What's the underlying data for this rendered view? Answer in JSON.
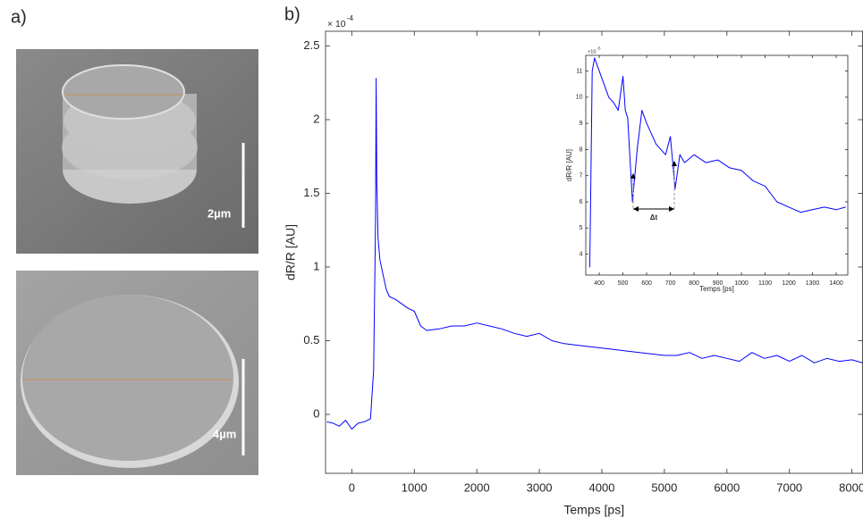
{
  "panels": {
    "a_label": "a)",
    "b_label": "b)"
  },
  "sem_images": [
    {
      "scale_label": "2µm"
    },
    {
      "scale_label": "4µm"
    }
  ],
  "inset_annotation": "Δt",
  "chart_data": [
    {
      "type": "line",
      "xlabel": "Temps [ps]",
      "ylabel": "dR/R [AU]",
      "exponent_base": "× 10",
      "exponent": "-4",
      "color": "#0000ff",
      "x": [
        -400,
        -300,
        -200,
        -100,
        0,
        100,
        200,
        300,
        350,
        380,
        390,
        400,
        420,
        450,
        500,
        550,
        600,
        700,
        800,
        900,
        1000,
        1100,
        1200,
        1400,
        1600,
        1800,
        2000,
        2200,
        2400,
        2600,
        2800,
        3000,
        3200,
        3400,
        3600,
        3800,
        4000,
        4200,
        4400,
        4600,
        4800,
        5000,
        5200,
        5400,
        5600,
        5800,
        6000,
        6200,
        6400,
        6600,
        6800,
        7000,
        7200,
        7400,
        7600,
        7800,
        8000,
        8170
      ],
      "values": [
        -0.05,
        -0.06,
        -0.08,
        -0.04,
        -0.1,
        -0.06,
        -0.05,
        -0.03,
        0.3,
        1.3,
        2.28,
        1.6,
        1.2,
        1.05,
        0.95,
        0.85,
        0.8,
        0.78,
        0.75,
        0.72,
        0.7,
        0.6,
        0.57,
        0.58,
        0.6,
        0.6,
        0.62,
        0.6,
        0.58,
        0.55,
        0.53,
        0.55,
        0.5,
        0.48,
        0.47,
        0.46,
        0.45,
        0.44,
        0.43,
        0.42,
        0.41,
        0.4,
        0.4,
        0.42,
        0.38,
        0.4,
        0.38,
        0.36,
        0.42,
        0.38,
        0.4,
        0.36,
        0.4,
        0.35,
        0.38,
        0.36,
        0.37,
        0.35
      ],
      "xlim": [
        -420,
        8170
      ],
      "ylim": [
        -0.4,
        2.6
      ],
      "xticks": [
        0,
        1000,
        2000,
        3000,
        4000,
        5000,
        6000,
        7000,
        8000
      ],
      "yticks": [
        0,
        0.5,
        1,
        1.5,
        2,
        2.5
      ]
    },
    {
      "type": "line",
      "xlabel": "Temps [ps]",
      "ylabel": "dR/R [AU]",
      "exponent_base": "×10",
      "exponent": "-5",
      "color": "#0000ff",
      "x": [
        360,
        370,
        380,
        400,
        420,
        440,
        460,
        480,
        500,
        510,
        520,
        540,
        560,
        580,
        600,
        640,
        680,
        700,
        720,
        740,
        760,
        800,
        850,
        900,
        950,
        1000,
        1050,
        1100,
        1150,
        1200,
        1250,
        1300,
        1350,
        1400,
        1440
      ],
      "values": [
        3.5,
        11,
        11.5,
        11,
        10.5,
        10,
        9.8,
        9.5,
        10.8,
        9.5,
        9.2,
        6,
        8,
        9.5,
        9,
        8.2,
        7.8,
        8.5,
        6.5,
        7.8,
        7.5,
        7.8,
        7.5,
        7.6,
        7.3,
        7.2,
        6.8,
        6.6,
        6.0,
        5.8,
        5.6,
        5.7,
        5.8,
        5.7,
        5.8
      ],
      "xlim": [
        343,
        1449
      ],
      "ylim": [
        3.2,
        11.6
      ],
      "xticks": [
        400,
        500,
        600,
        700,
        800,
        900,
        1000,
        1100,
        1200,
        1300,
        1400
      ],
      "yticks": [
        4,
        5,
        6,
        7,
        8,
        9,
        10,
        11
      ]
    }
  ]
}
